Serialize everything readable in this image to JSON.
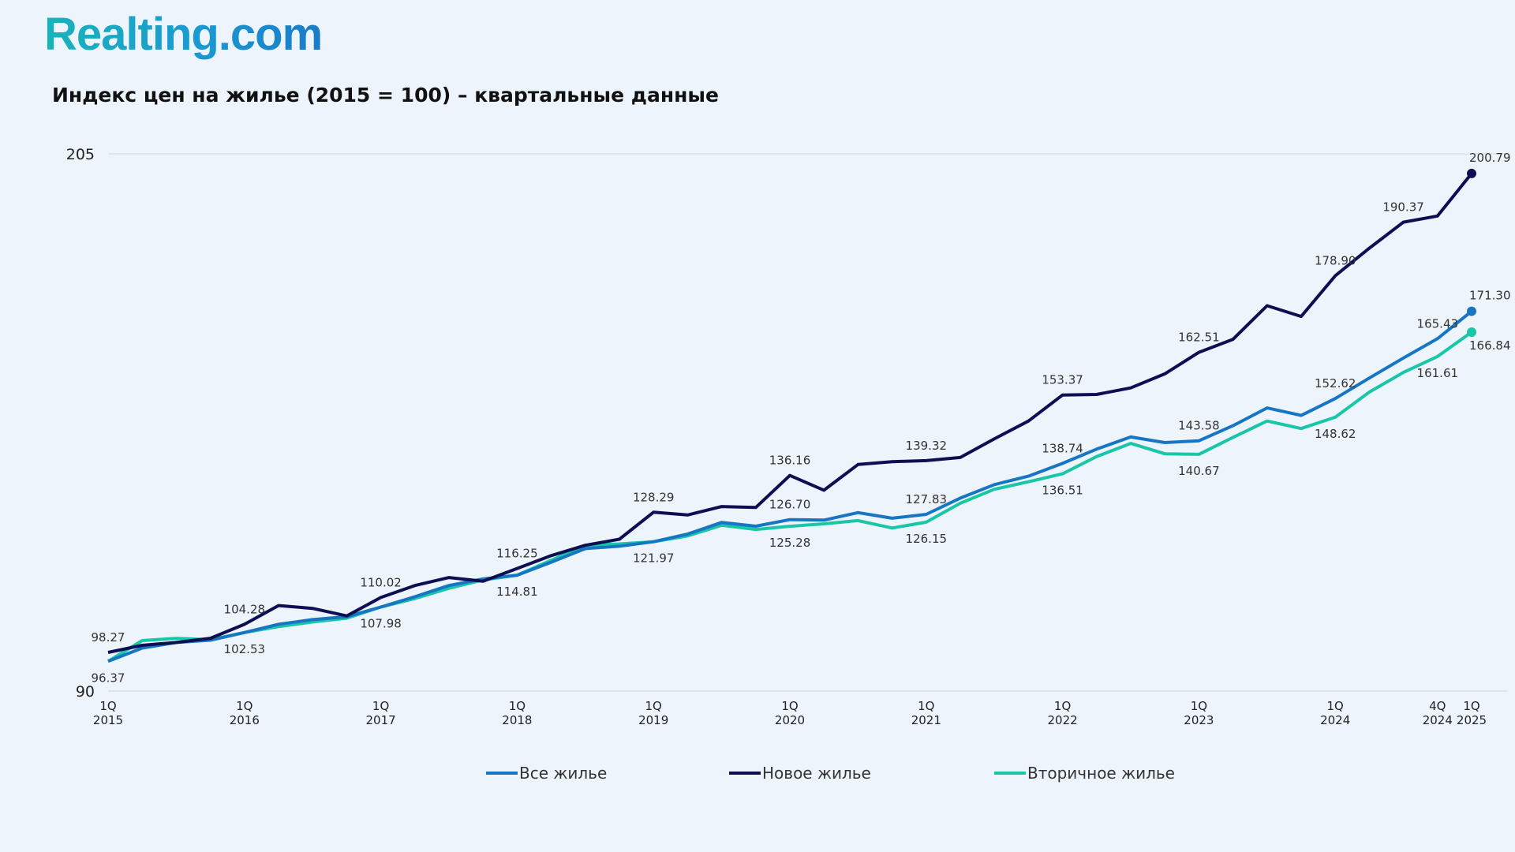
{
  "logo": {
    "text": "Realting.com"
  },
  "chart_data": {
    "type": "line",
    "title": "Индекс цен на жилье (2015 = 100) – квартальные данные",
    "ylim": [
      90,
      205
    ],
    "yticks": [
      "205",
      "90"
    ],
    "grid": "top line only",
    "legend_position": "bottom-center",
    "x_ticks": [
      {
        "i": 0,
        "q": "1Q",
        "y": "2015"
      },
      {
        "i": 4,
        "q": "1Q",
        "y": "2016"
      },
      {
        "i": 8,
        "q": "1Q",
        "y": "2017"
      },
      {
        "i": 12,
        "q": "1Q",
        "y": "2018"
      },
      {
        "i": 16,
        "q": "1Q",
        "y": "2019"
      },
      {
        "i": 20,
        "q": "1Q",
        "y": "2020"
      },
      {
        "i": 24,
        "q": "1Q",
        "y": "2021"
      },
      {
        "i": 28,
        "q": "1Q",
        "y": "2022"
      },
      {
        "i": 32,
        "q": "1Q",
        "y": "2023"
      },
      {
        "i": 36,
        "q": "1Q",
        "y": "2024"
      },
      {
        "i": 39,
        "q": "4Q",
        "y": "2024"
      },
      {
        "i": 40,
        "q": "1Q",
        "y": "2025"
      }
    ],
    "series": [
      {
        "name": "Все жилье",
        "color": "#1776c4",
        "values": [
          96.37,
          99.2,
          100.4,
          100.9,
          102.53,
          104.3,
          105.3,
          105.9,
          107.98,
          110.2,
          112.6,
          114.0,
          114.81,
          117.6,
          120.5,
          121.0,
          121.97,
          123.6,
          126.1,
          125.3,
          126.7,
          126.6,
          128.2,
          127.0,
          127.83,
          131.3,
          134.2,
          136.0,
          138.74,
          141.8,
          144.4,
          143.2,
          143.58,
          146.8,
          150.6,
          149.0,
          152.62,
          157.0,
          161.3,
          165.43,
          171.3
        ],
        "labels": [
          {
            "i": 20,
            "v": "126.70",
            "pos": "above"
          },
          {
            "i": 24,
            "v": "127.83",
            "pos": "above"
          },
          {
            "i": 28,
            "v": "138.74",
            "pos": "above"
          },
          {
            "i": 32,
            "v": "143.58",
            "pos": "above"
          },
          {
            "i": 36,
            "v": "152.62",
            "pos": "above"
          },
          {
            "i": 39,
            "v": "165.43",
            "pos": "above"
          },
          {
            "i": 40,
            "v": "171.30",
            "pos": "right-above"
          }
        ]
      },
      {
        "name": "Новое жилье",
        "color": "#0d0f52",
        "values": [
          98.27,
          99.8,
          100.4,
          101.3,
          104.28,
          108.3,
          107.7,
          106.1,
          110.02,
          112.6,
          114.3,
          113.5,
          116.25,
          119.0,
          121.2,
          122.5,
          128.29,
          127.7,
          129.5,
          129.3,
          136.16,
          133.0,
          138.5,
          139.1,
          139.32,
          140.0,
          144.0,
          147.8,
          153.37,
          153.5,
          154.9,
          157.9,
          162.51,
          165.3,
          172.5,
          170.2,
          178.9,
          184.8,
          190.37,
          191.7,
          200.79
        ],
        "labels": [
          {
            "i": 0,
            "v": "98.27",
            "pos": "above"
          },
          {
            "i": 4,
            "v": "104.28",
            "pos": "above"
          },
          {
            "i": 8,
            "v": "110.02",
            "pos": "above"
          },
          {
            "i": 12,
            "v": "116.25",
            "pos": "above"
          },
          {
            "i": 16,
            "v": "128.29",
            "pos": "above"
          },
          {
            "i": 20,
            "v": "136.16",
            "pos": "above"
          },
          {
            "i": 24,
            "v": "139.32",
            "pos": "above"
          },
          {
            "i": 28,
            "v": "153.37",
            "pos": "above"
          },
          {
            "i": 32,
            "v": "162.51",
            "pos": "above"
          },
          {
            "i": 36,
            "v": "178.90",
            "pos": "above"
          },
          {
            "i": 38,
            "v": "190.37",
            "pos": "above"
          },
          {
            "i": 40,
            "v": "200.79",
            "pos": "right-above"
          }
        ]
      },
      {
        "name": "Вторичное жилье",
        "color": "#19c6a8",
        "values": [
          96.37,
          100.8,
          101.3,
          101.0,
          102.53,
          103.8,
          104.8,
          105.6,
          107.98,
          109.8,
          112.0,
          113.8,
          114.81,
          118.0,
          121.2,
          121.5,
          121.97,
          123.2,
          125.5,
          124.6,
          125.28,
          125.8,
          126.5,
          124.9,
          126.15,
          130.2,
          133.2,
          134.8,
          136.51,
          140.2,
          143.0,
          140.8,
          140.67,
          144.3,
          147.8,
          146.2,
          148.62,
          154.0,
          158.2,
          161.61,
          166.84
        ],
        "labels": [
          {
            "i": 0,
            "v": "96.37",
            "pos": "below"
          },
          {
            "i": 4,
            "v": "102.53",
            "pos": "below"
          },
          {
            "i": 8,
            "v": "107.98",
            "pos": "below"
          },
          {
            "i": 12,
            "v": "114.81",
            "pos": "below"
          },
          {
            "i": 16,
            "v": "121.97",
            "pos": "below"
          },
          {
            "i": 20,
            "v": "125.28",
            "pos": "below"
          },
          {
            "i": 24,
            "v": "126.15",
            "pos": "below"
          },
          {
            "i": 28,
            "v": "136.51",
            "pos": "below"
          },
          {
            "i": 32,
            "v": "140.67",
            "pos": "below"
          },
          {
            "i": 36,
            "v": "148.62",
            "pos": "below"
          },
          {
            "i": 39,
            "v": "161.61",
            "pos": "below"
          },
          {
            "i": 40,
            "v": "166.84",
            "pos": "right-below"
          }
        ]
      }
    ]
  }
}
